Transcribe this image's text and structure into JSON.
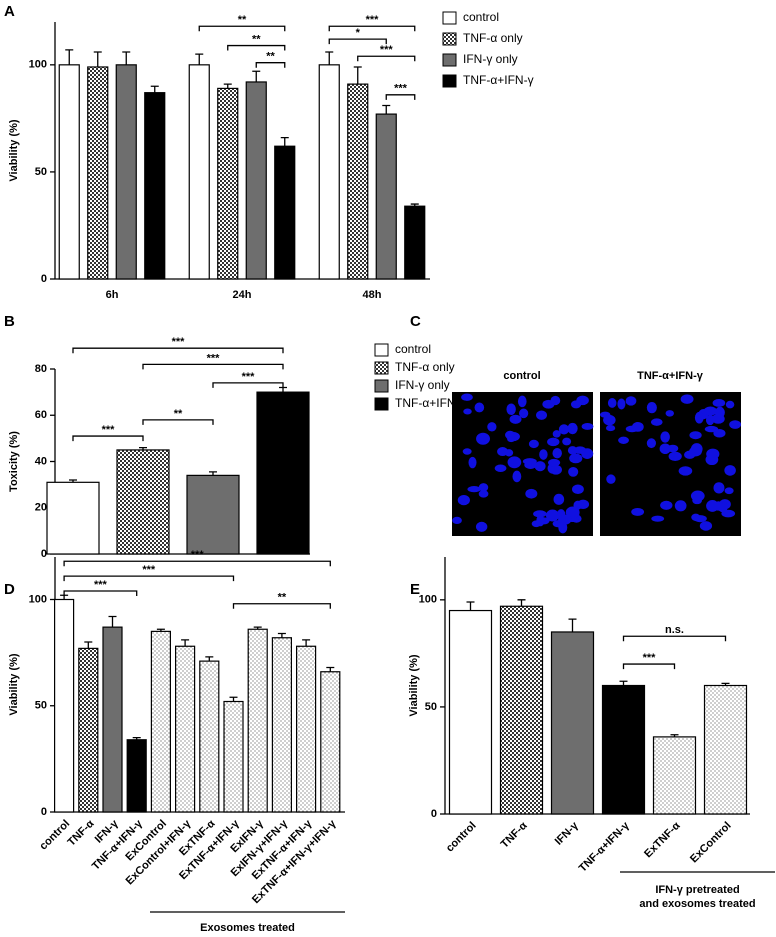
{
  "chart_data": [
    {
      "panel": "A",
      "type": "grouped_bar",
      "ylabel": "Viability (%)",
      "ylim": [
        0,
        120
      ],
      "yticks": [
        0,
        50,
        100
      ],
      "categories": [
        "6h",
        "24h",
        "48h"
      ],
      "series": [
        {
          "name": "control",
          "color": "#ffffff",
          "values": [
            100,
            100,
            100
          ],
          "errors": [
            7,
            5,
            6
          ]
        },
        {
          "name": "TNF-α only",
          "color": "checker",
          "values": [
            99,
            89,
            91
          ],
          "errors": [
            7,
            2,
            8
          ]
        },
        {
          "name": "IFN-γ only",
          "color": "#6e6e6e",
          "values": [
            100,
            92,
            77
          ],
          "errors": [
            6,
            5,
            4
          ]
        },
        {
          "name": "TNF-α+IFN-γ",
          "color": "#000000",
          "values": [
            87,
            62,
            34
          ],
          "errors": [
            3,
            4,
            1
          ]
        }
      ],
      "annotations": [
        "**",
        "**",
        "**",
        "***",
        "*",
        "***",
        "***"
      ]
    },
    {
      "panel": "B",
      "type": "grouped_bar",
      "ylabel": "Toxicity (%)",
      "ylim": [
        0,
        80
      ],
      "yticks": [
        0,
        20,
        40,
        60,
        80
      ],
      "categories": [
        null
      ],
      "series": [
        {
          "name": "control",
          "color": "#ffffff",
          "values": [
            31
          ],
          "errors": [
            1
          ]
        },
        {
          "name": "TNF-α only",
          "color": "checker",
          "values": [
            45
          ],
          "errors": [
            1
          ]
        },
        {
          "name": "IFN-γ only",
          "color": "#6e6e6e",
          "values": [
            34
          ],
          "errors": [
            1.5
          ]
        },
        {
          "name": "TNF-α+IFN-γ",
          "color": "#000000",
          "values": [
            70
          ],
          "errors": [
            2
          ]
        }
      ],
      "annotations": [
        "***",
        "***",
        "***",
        "***",
        "**"
      ]
    },
    {
      "panel": "D",
      "type": "bar",
      "ylabel": "Viability (%)",
      "ylim": [
        0,
        120
      ],
      "yticks": [
        0,
        50,
        100
      ],
      "categories": [
        "control",
        "TNF-α",
        "IFN-γ",
        "TNF-α+IFN-γ",
        "ExControl",
        "ExControl+IFN-γ",
        "ExTNF-α",
        "ExTNF-α+IFN-γ",
        "ExIFN-γ",
        "ExIFN-γ+IFN-γ",
        "ExTNF-α+IFN-γ",
        "ExTNF-α+IFN-γ+IFN-γ"
      ],
      "values": [
        100,
        77,
        87,
        34,
        85,
        78,
        71,
        52,
        86,
        82,
        78,
        66
      ],
      "errors": [
        2,
        3,
        5,
        1,
        1,
        3,
        2,
        2,
        1,
        2,
        3,
        2
      ],
      "colors": [
        "#ffffff",
        "checker",
        "#6e6e6e",
        "#000000",
        "dots",
        "dots",
        "dots",
        "dots",
        "dots",
        "dots",
        "dots",
        "dots"
      ],
      "annotations": [
        "***",
        "***",
        "***",
        "**"
      ],
      "group_label": [
        "Exosomes treated"
      ]
    },
    {
      "panel": "E",
      "type": "bar",
      "ylabel": "Viability (%)",
      "ylim": [
        0,
        120
      ],
      "yticks": [
        0,
        50,
        100
      ],
      "categories": [
        "control",
        "TNF-α",
        "IFN-γ",
        "TNF-α+IFN-γ",
        "ExTNF-α",
        "ExControl"
      ],
      "values": [
        95,
        97,
        85,
        60,
        36,
        60
      ],
      "errors": [
        4,
        3,
        6,
        2,
        1,
        1
      ],
      "colors": [
        "#ffffff",
        "checker",
        "#6e6e6e",
        "#000000",
        "dots",
        "dots"
      ],
      "annotations": [
        "***",
        "n.s."
      ],
      "group_label": [
        "IFN-γ pretreated",
        "and exosomes treated"
      ]
    }
  ],
  "image_panel": {
    "panel": "C",
    "labels": [
      "control",
      "TNF-α+IFN-γ"
    ]
  }
}
